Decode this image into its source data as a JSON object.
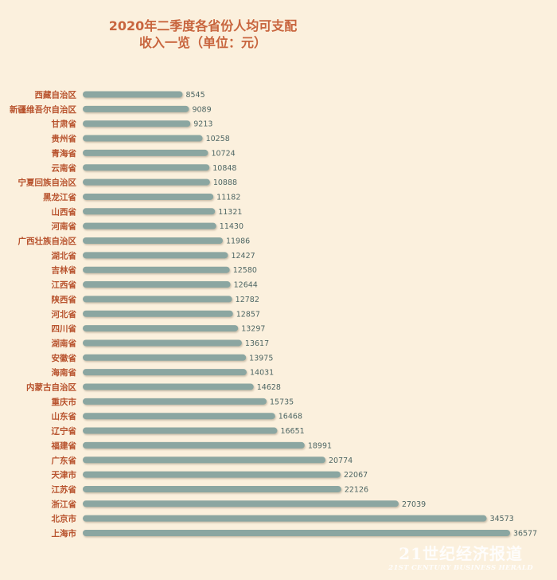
{
  "chart_data": {
    "type": "bar",
    "orientation": "horizontal",
    "title_lines": [
      "2020年二季度各省份人均可支配",
      "收入一览（单位：元）"
    ],
    "categories": [
      "西藏自治区",
      "新疆维吾尔自治区",
      "甘肃省",
      "贵州省",
      "青海省",
      "云南省",
      "宁夏回族自治区",
      "黑龙江省",
      "山西省",
      "河南省",
      "广西壮族自治区",
      "湖北省",
      "吉林省",
      "江西省",
      "陕西省",
      "河北省",
      "四川省",
      "湖南省",
      "安徽省",
      "海南省",
      "内蒙古自治区",
      "重庆市",
      "山东省",
      "辽宁省",
      "福建省",
      "广东省",
      "天津市",
      "江苏省",
      "浙江省",
      "北京市",
      "上海市"
    ],
    "values": [
      8545,
      9089,
      9213,
      10258,
      10724,
      10848,
      10888,
      11182,
      11321,
      11430,
      11986,
      12427,
      12580,
      12644,
      12782,
      12857,
      13297,
      13617,
      13975,
      14031,
      14628,
      15735,
      16468,
      16651,
      18991,
      20774,
      22067,
      22126,
      27039,
      34573,
      36577
    ],
    "value_labels": [
      "8545",
      "9089",
      "9213",
      "10258",
      "10724",
      "10848",
      "10888",
      "11182",
      "11321",
      "11430",
      "11986",
      "12427",
      "12580",
      "12644",
      "12782",
      "12857",
      "13297",
      "13617",
      "13975",
      "14031",
      "14628",
      "15735",
      "16468",
      "16651",
      "18991",
      "20774",
      "22067",
      "22126",
      "27039",
      "34573",
      "36577"
    ],
    "bar_color": "#8ba6a1",
    "label_color": "#b8532e",
    "title_color": "#c8653e",
    "background": "#fbf0dd",
    "grid": false,
    "legend": "none"
  },
  "watermark": {
    "main": "21世纪经济报道",
    "sub": "21ST CENTURY BUSINESS HERALD"
  }
}
